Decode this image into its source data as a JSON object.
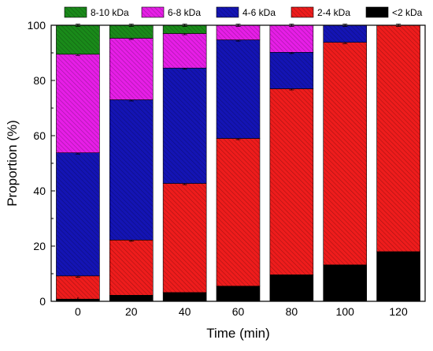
{
  "chart_data": {
    "type": "bar",
    "stacked": true,
    "title": "",
    "xlabel": "Time (min)",
    "ylabel": "Proportion (%)",
    "ylim": [
      0,
      100
    ],
    "yticks": [
      0,
      20,
      40,
      60,
      80,
      100
    ],
    "grid": false,
    "legend_position": "top",
    "categories": [
      "0",
      "20",
      "40",
      "60",
      "80",
      "100",
      "120"
    ],
    "series": [
      {
        "name": "<2 kDa",
        "color": "#000000",
        "hatch": false,
        "values": [
          0.8,
          2.2,
          3.2,
          5.5,
          9.6,
          13.2,
          18.0
        ]
      },
      {
        "name": "2-4 kDa",
        "color": "#ee1c1c",
        "hatch": true,
        "values": [
          8.4,
          20.0,
          39.5,
          53.5,
          67.4,
          80.6,
          82.0
        ]
      },
      {
        "name": "4-6 kDa",
        "color": "#1414b4",
        "hatch": true,
        "values": [
          44.6,
          50.8,
          41.8,
          35.7,
          13.2,
          6.2,
          0.0
        ]
      },
      {
        "name": "6-8 kDa",
        "color": "#e61ee6",
        "hatch": true,
        "values": [
          35.7,
          22.3,
          12.5,
          5.3,
          9.8,
          0.0,
          0.0
        ]
      },
      {
        "name": "8-10 kDa",
        "color": "#1a8a1a",
        "hatch": true,
        "values": [
          10.5,
          4.7,
          3.0,
          0.0,
          0.0,
          0.0,
          0.0
        ]
      }
    ]
  }
}
